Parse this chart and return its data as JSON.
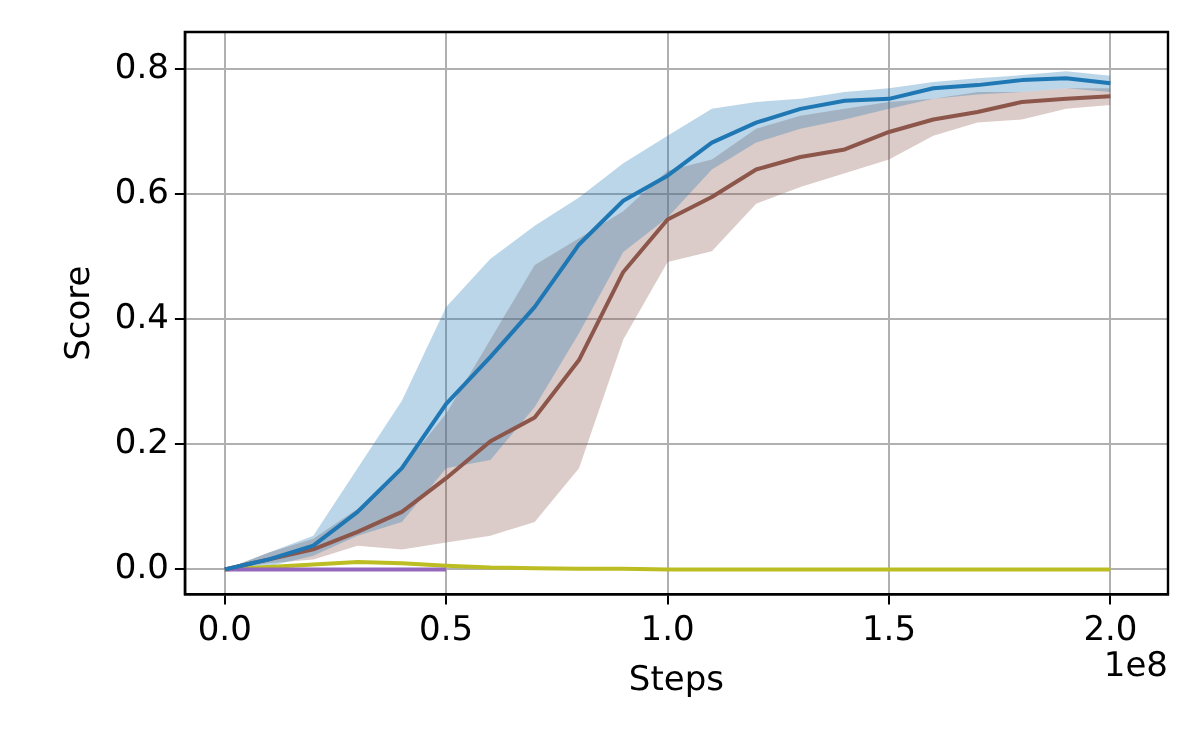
{
  "chart_data": {
    "type": "line",
    "xlabel": "Steps",
    "ylabel": "Score",
    "annotations": [
      "1e8"
    ],
    "x": [
      0,
      0.1,
      0.2,
      0.3,
      0.4,
      0.5,
      0.6,
      0.7,
      0.8,
      0.9,
      1.0,
      1.1,
      1.2,
      1.3,
      1.4,
      1.5,
      1.6,
      1.7,
      1.8,
      1.9,
      2.0
    ],
    "series": [
      {
        "color": "#1f77b4",
        "values": [
          0,
          0.016,
          0.038,
          0.092,
          0.162,
          0.265,
          0.34,
          0.42,
          0.52,
          0.59,
          0.63,
          0.683,
          0.715,
          0.737,
          0.75,
          0.753,
          0.77,
          0.775,
          0.783,
          0.786,
          0.778
        ],
        "lower": [
          0,
          0.005,
          0.022,
          0.054,
          0.076,
          0.162,
          0.175,
          0.26,
          0.378,
          0.508,
          0.563,
          0.64,
          0.683,
          0.705,
          0.72,
          0.737,
          0.753,
          0.76,
          0.764,
          0.77,
          0.764
        ],
        "upper": [
          0,
          0.027,
          0.054,
          0.162,
          0.27,
          0.42,
          0.497,
          0.55,
          0.595,
          0.65,
          0.694,
          0.737,
          0.748,
          0.753,
          0.764,
          0.77,
          0.78,
          0.786,
          0.791,
          0.797,
          0.79
        ]
      },
      {
        "color": "#8c564b",
        "values": [
          0,
          0.016,
          0.032,
          0.06,
          0.092,
          0.146,
          0.205,
          0.243,
          0.335,
          0.476,
          0.56,
          0.596,
          0.64,
          0.66,
          0.672,
          0.7,
          0.72,
          0.732,
          0.748,
          0.753,
          0.757
        ],
        "lower": [
          0,
          0.01,
          0.016,
          0.038,
          0.032,
          0.043,
          0.054,
          0.076,
          0.162,
          0.368,
          0.492,
          0.509,
          0.585,
          0.612,
          0.634,
          0.656,
          0.694,
          0.715,
          0.72,
          0.737,
          0.743
        ],
        "upper": [
          0,
          0.027,
          0.049,
          0.097,
          0.162,
          0.249,
          0.368,
          0.487,
          0.53,
          0.573,
          0.638,
          0.656,
          0.705,
          0.726,
          0.737,
          0.748,
          0.753,
          0.764,
          0.764,
          0.77,
          0.77
        ]
      },
      {
        "color": "#9467bd",
        "values": [
          0,
          0,
          0,
          0,
          0,
          0,
          null,
          null,
          null,
          null,
          null,
          null,
          null,
          null,
          null,
          null,
          null,
          null,
          null,
          null,
          null
        ]
      },
      {
        "color": "#bcbd22",
        "values": [
          0,
          0.004,
          0.008,
          0.012,
          0.01,
          0.006,
          0.003,
          0.002,
          0.001,
          0.001,
          0,
          0,
          0,
          0,
          0,
          0,
          0,
          0,
          0,
          0,
          0
        ]
      }
    ],
    "xlim": [
      -0.09,
      2.13
    ],
    "ylim": [
      -0.04,
      0.86
    ],
    "xticks": [
      {
        "value": 0,
        "label": "0.0"
      },
      0.5,
      {
        "value": 1,
        "label": "1.0"
      },
      1.5,
      {
        "value": 2,
        "label": "2.0"
      }
    ],
    "yticks": [
      {
        "value": 0,
        "label": "0.0"
      },
      0.2,
      0.4,
      0.6,
      0.8
    ],
    "grid": true,
    "legend": false,
    "marker": "none",
    "line_style": "solid"
  }
}
